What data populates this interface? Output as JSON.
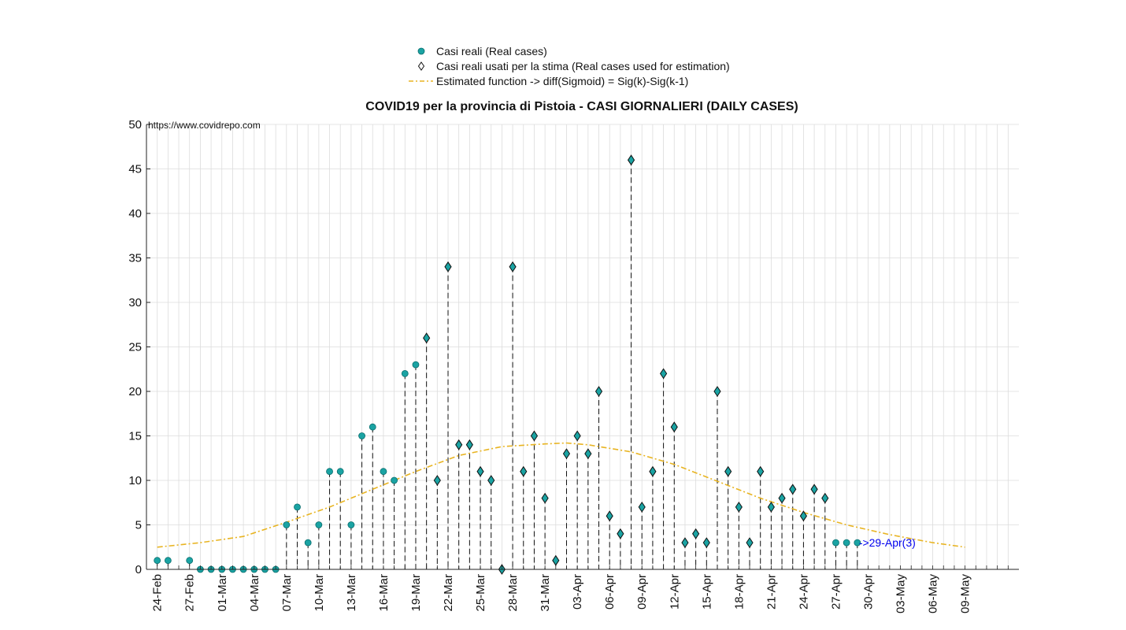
{
  "chart_data": {
    "type": "scatter",
    "title": "COVID19 per la provincia di Pistoia - CASI GIORNALIERI (DAILY CASES)",
    "watermark": "https://www.covidrepo.com",
    "xlabel": "",
    "ylabel": "",
    "ylim": [
      0,
      50
    ],
    "yticks": [
      0,
      5,
      10,
      15,
      20,
      25,
      30,
      35,
      40,
      45,
      50
    ],
    "xlim": [
      "23-Feb",
      "14-May"
    ],
    "xtick_labels": [
      "24-Feb",
      "27-Feb",
      "01-Mar",
      "04-Mar",
      "07-Mar",
      "10-Mar",
      "13-Mar",
      "16-Mar",
      "19-Mar",
      "22-Mar",
      "25-Mar",
      "28-Mar",
      "31-Mar",
      "03-Apr",
      "06-Apr",
      "09-Apr",
      "12-Apr",
      "15-Apr",
      "18-Apr",
      "21-Apr",
      "24-Apr",
      "27-Apr",
      "30-Apr",
      "03-May",
      "06-May",
      "09-May"
    ],
    "grid": true,
    "legend_position": "top-center",
    "colors": {
      "real": "#1aa3a3",
      "estimation": "#1aa3a3",
      "fit": "#e8b422",
      "annotation": "#0000ee"
    },
    "series": [
      {
        "name": "Casi reali (Real cases)",
        "marker": "circle",
        "x": [
          "24-Feb",
          "25-Feb",
          "27-Feb",
          "28-Feb",
          "29-Feb",
          "01-Mar",
          "02-Mar",
          "03-Mar",
          "04-Mar",
          "05-Mar",
          "06-Mar",
          "07-Mar",
          "08-Mar",
          "09-Mar",
          "10-Mar",
          "11-Mar",
          "12-Mar",
          "13-Mar",
          "14-Mar",
          "15-Mar",
          "16-Mar",
          "17-Mar",
          "18-Mar",
          "19-Mar",
          "27-Apr",
          "28-Apr",
          "29-Apr"
        ],
        "values": [
          1,
          1,
          1,
          0,
          0,
          0,
          0,
          0,
          0,
          0,
          0,
          5,
          7,
          3,
          5,
          11,
          11,
          5,
          15,
          16,
          11,
          10,
          22,
          23,
          3,
          3,
          3
        ]
      },
      {
        "name": "Casi reali usati per la stima (Real cases used for estimation)",
        "marker": "diamond",
        "x": [
          "20-Mar",
          "21-Mar",
          "22-Mar",
          "23-Mar",
          "24-Mar",
          "25-Mar",
          "26-Mar",
          "27-Mar",
          "28-Mar",
          "29-Mar",
          "30-Mar",
          "31-Mar",
          "01-Apr",
          "02-Apr",
          "03-Apr",
          "04-Apr",
          "05-Apr",
          "06-Apr",
          "07-Apr",
          "08-Apr",
          "09-Apr",
          "10-Apr",
          "11-Apr",
          "12-Apr",
          "13-Apr",
          "14-Apr",
          "15-Apr",
          "16-Apr",
          "17-Apr",
          "18-Apr",
          "19-Apr",
          "20-Apr",
          "21-Apr",
          "22-Apr",
          "23-Apr",
          "24-Apr",
          "25-Apr",
          "26-Apr"
        ],
        "values": [
          26,
          10,
          34,
          14,
          14,
          11,
          10,
          0,
          34,
          11,
          15,
          8,
          1,
          13,
          15,
          13,
          20,
          6,
          4,
          46,
          7,
          11,
          22,
          16,
          3,
          4,
          3,
          20,
          11,
          7,
          3,
          11,
          7,
          8,
          9,
          6,
          9,
          8
        ]
      },
      {
        "name": "Estimated function -> diff(Sigmoid) = Sig(k)-Sig(k-1)",
        "marker": "dashdot-line",
        "x": [
          "24-Feb",
          "28-Feb",
          "03-Mar",
          "07-Mar",
          "11-Mar",
          "15-Mar",
          "19-Mar",
          "23-Mar",
          "27-Mar",
          "31-Mar",
          "02-Apr",
          "04-Apr",
          "08-Apr",
          "12-Apr",
          "16-Apr",
          "20-Apr",
          "24-Apr",
          "28-Apr",
          "02-May",
          "06-May",
          "09-May"
        ],
        "values": [
          2.5,
          3.0,
          3.7,
          5.3,
          7.0,
          9.0,
          11.0,
          12.8,
          13.8,
          14.1,
          14.2,
          14.0,
          13.2,
          11.8,
          9.9,
          8.0,
          6.4,
          5.0,
          3.9,
          3.0,
          2.5
        ]
      }
    ],
    "annotations": [
      {
        "text": "->29-Apr(3)",
        "x": "29-Apr",
        "y": 3
      }
    ]
  }
}
